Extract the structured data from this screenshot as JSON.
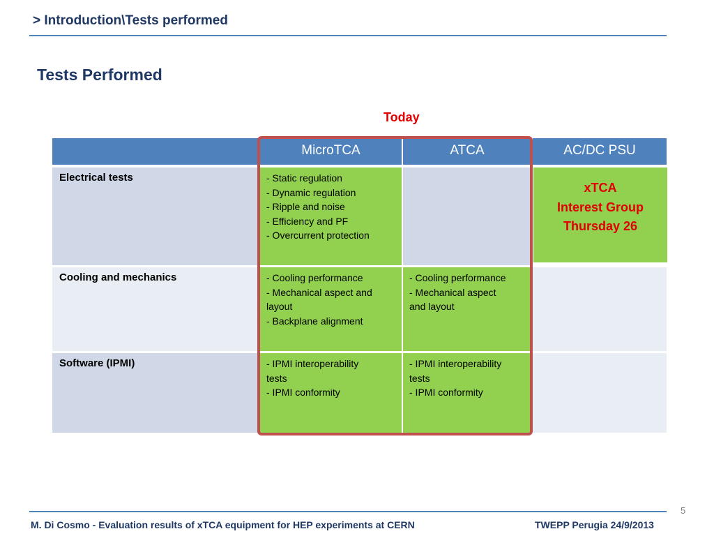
{
  "header": {
    "breadcrumb": "> Introduction\\Tests performed",
    "title": "Tests Performed",
    "today_label": "Today"
  },
  "table": {
    "columns": [
      "",
      "MicroTCA",
      "ATCA",
      "AC/DC PSU"
    ],
    "rows": [
      {
        "label": "Electrical tests",
        "microtca": [
          "- Static regulation",
          "- Dynamic regulation",
          "- Ripple and noise",
          "- Efficiency and PF",
          "- Overcurrent protection"
        ],
        "atca": []
      },
      {
        "label": "Cooling and mechanics",
        "microtca": [
          "- Cooling performance",
          "- Mechanical aspect and",
          "layout",
          "- Backplane alignment"
        ],
        "atca": [
          "- Cooling performance",
          "- Mechanical aspect",
          "and layout"
        ]
      },
      {
        "label": "Software (IPMI)",
        "microtca": [
          "- IPMI interoperability",
          "tests",
          "- IPMI conformity"
        ],
        "atca": [
          "- IPMI interoperability",
          "tests",
          "- IPMI conformity"
        ]
      }
    ]
  },
  "callout": {
    "line1": "xTCA",
    "line2": "Interest Group",
    "line3": "Thursday 26"
  },
  "footer": {
    "left": "M. Di Cosmo - Evaluation results of xTCA  equipment for HEP experiments  at CERN",
    "right": "TWEPP Perugia 24/9/2013",
    "slide_number": "5"
  },
  "colors": {
    "header_fill": "#4f81bd",
    "highlight_green": "#92d050",
    "today_red": "#e00000",
    "frame_red": "#c0504d",
    "title_navy": "#1f3864"
  }
}
